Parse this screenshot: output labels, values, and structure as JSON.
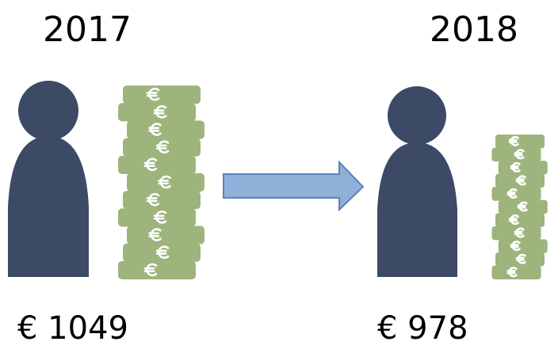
{
  "panels": [
    {
      "year": "2017",
      "amount": "€ 1049"
    },
    {
      "year": "2018",
      "amount": "€ 978"
    }
  ]
}
